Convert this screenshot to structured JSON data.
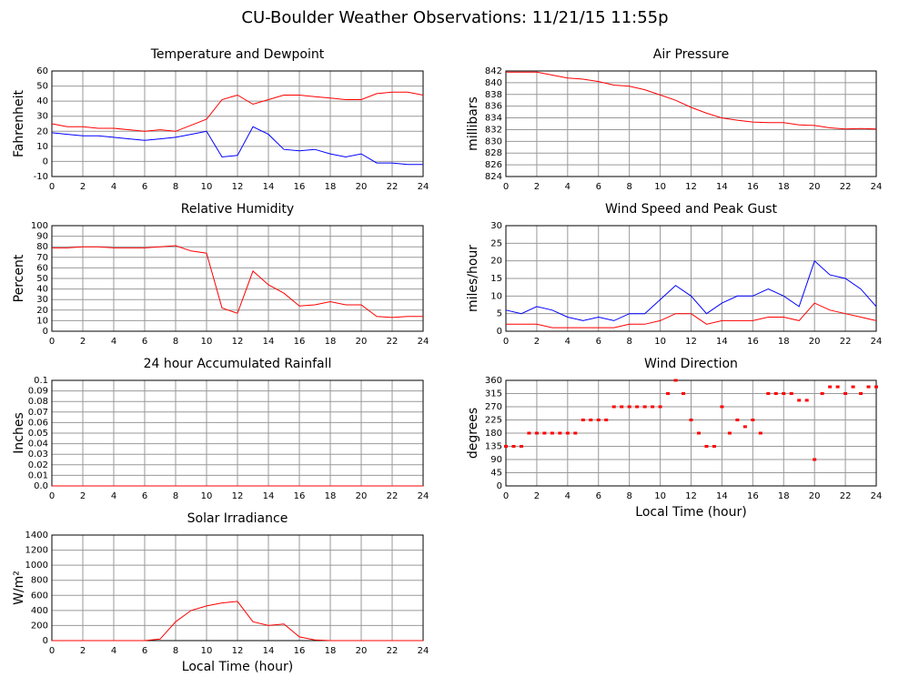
{
  "title": "CU-Boulder Weather Observations: 11/21/15 11:55p",
  "chart_data": [
    {
      "type": "line",
      "title": "Temperature and Dewpoint",
      "ylabel": "Fahrenheit",
      "x": [
        0,
        1,
        2,
        3,
        4,
        5,
        6,
        7,
        8,
        9,
        10,
        11,
        12,
        13,
        14,
        15,
        16,
        17,
        18,
        19,
        20,
        21,
        22,
        23,
        24
      ],
      "series": [
        {
          "name": "Temperature",
          "color": "#ff0000",
          "values": [
            25,
            23,
            23,
            22,
            22,
            21,
            20,
            21,
            20,
            24,
            28,
            41,
            44,
            38,
            41,
            44,
            44,
            43,
            42,
            41,
            41,
            45,
            46,
            46,
            44
          ]
        },
        {
          "name": "Dewpoint",
          "color": "#0000ff",
          "values": [
            19,
            18,
            17,
            17,
            16,
            15,
            14,
            15,
            16,
            18,
            20,
            3,
            4,
            23,
            18,
            8,
            7,
            8,
            5,
            3,
            5,
            -1,
            -1,
            -2,
            -2
          ]
        }
      ],
      "xlim": [
        0,
        24
      ],
      "xticks": [
        0,
        2,
        4,
        6,
        8,
        10,
        12,
        14,
        16,
        18,
        20,
        22,
        24
      ],
      "ylim": [
        -10,
        60
      ],
      "yticks": [
        -10,
        0,
        10,
        20,
        30,
        40,
        50,
        60
      ],
      "grid": true
    },
    {
      "type": "line",
      "title": "Air Pressure",
      "ylabel": "millibars",
      "x": [
        0,
        1,
        2,
        3,
        4,
        5,
        6,
        7,
        8,
        9,
        10,
        11,
        12,
        13,
        14,
        15,
        16,
        17,
        18,
        19,
        20,
        21,
        22,
        23,
        24
      ],
      "series": [
        {
          "name": "Air Pressure",
          "color": "#ff0000",
          "values": [
            841.8,
            841.8,
            841.8,
            841.3,
            840.8,
            840.6,
            840.2,
            839.6,
            839.4,
            838.8,
            837.9,
            837.0,
            835.8,
            834.8,
            834.0,
            833.6,
            833.3,
            833.2,
            833.2,
            832.8,
            832.7,
            832.3,
            832.1,
            832.2,
            832.1
          ]
        }
      ],
      "xlim": [
        0,
        24
      ],
      "xticks": [
        0,
        2,
        4,
        6,
        8,
        10,
        12,
        14,
        16,
        18,
        20,
        22,
        24
      ],
      "ylim": [
        824,
        842
      ],
      "yticks": [
        824,
        826,
        828,
        830,
        832,
        834,
        836,
        838,
        840,
        842
      ],
      "grid": true
    },
    {
      "type": "line",
      "title": "Relative Humidity",
      "ylabel": "Percent",
      "x": [
        0,
        1,
        2,
        3,
        4,
        5,
        6,
        7,
        8,
        9,
        10,
        11,
        12,
        13,
        14,
        15,
        16,
        17,
        18,
        19,
        20,
        21,
        22,
        23,
        24
      ],
      "series": [
        {
          "name": "Relative Humidity",
          "color": "#ff0000",
          "values": [
            79,
            79,
            80,
            80,
            79,
            79,
            79,
            80,
            81,
            76,
            74,
            22,
            17,
            57,
            44,
            36,
            24,
            25,
            28,
            25,
            25,
            14,
            13,
            14,
            14
          ]
        }
      ],
      "xlim": [
        0,
        24
      ],
      "xticks": [
        0,
        2,
        4,
        6,
        8,
        10,
        12,
        14,
        16,
        18,
        20,
        22,
        24
      ],
      "ylim": [
        0,
        100
      ],
      "yticks": [
        0,
        10,
        20,
        30,
        40,
        50,
        60,
        70,
        80,
        90,
        100
      ],
      "grid": true
    },
    {
      "type": "line",
      "title": "Wind Speed and Peak Gust",
      "ylabel": "miles/hour",
      "x": [
        0,
        1,
        2,
        3,
        4,
        5,
        6,
        7,
        8,
        9,
        10,
        11,
        12,
        13,
        14,
        15,
        16,
        17,
        18,
        19,
        20,
        21,
        22,
        23,
        24
      ],
      "series": [
        {
          "name": "Peak Gust",
          "color": "#0000ff",
          "values": [
            6,
            5,
            7,
            6,
            4,
            3,
            4,
            3,
            5,
            5,
            9,
            13,
            10,
            5,
            8,
            10,
            10,
            12,
            10,
            7,
            20,
            16,
            15,
            12,
            7
          ]
        },
        {
          "name": "Wind Speed",
          "color": "#ff0000",
          "values": [
            2,
            2,
            2,
            1,
            1,
            1,
            1,
            1,
            2,
            2,
            3,
            5,
            5,
            2,
            3,
            3,
            3,
            4,
            4,
            3,
            8,
            6,
            5,
            4,
            3
          ]
        }
      ],
      "xlim": [
        0,
        24
      ],
      "xticks": [
        0,
        2,
        4,
        6,
        8,
        10,
        12,
        14,
        16,
        18,
        20,
        22,
        24
      ],
      "ylim": [
        0,
        30
      ],
      "yticks": [
        0,
        5,
        10,
        15,
        20,
        25,
        30
      ],
      "grid": true
    },
    {
      "type": "line",
      "title": "24 hour Accumulated Rainfall",
      "ylabel": "Inches",
      "x": [
        0,
        1,
        2,
        3,
        4,
        5,
        6,
        7,
        8,
        9,
        10,
        11,
        12,
        13,
        14,
        15,
        16,
        17,
        18,
        19,
        20,
        21,
        22,
        23,
        24
      ],
      "series": [
        {
          "name": "Rainfall",
          "color": "#ff0000",
          "values": [
            0,
            0,
            0,
            0,
            0,
            0,
            0,
            0,
            0,
            0,
            0,
            0,
            0,
            0,
            0,
            0,
            0,
            0,
            0,
            0,
            0,
            0,
            0,
            0,
            0
          ]
        }
      ],
      "xlim": [
        0,
        24
      ],
      "xticks": [
        0,
        2,
        4,
        6,
        8,
        10,
        12,
        14,
        16,
        18,
        20,
        22,
        24
      ],
      "ylim": [
        0,
        0.1
      ],
      "yticks": [
        {
          "value": 0,
          "label": "0.0"
        },
        0.01,
        0.02,
        0.03,
        0.04,
        0.05,
        0.06,
        0.07,
        0.08,
        0.09,
        0.1
      ],
      "grid": true
    },
    {
      "type": "scatter",
      "title": "Wind Direction",
      "ylabel": "degrees",
      "xlabel": "Local Time (hour)",
      "x": [
        0,
        0.5,
        1,
        1.5,
        2,
        2.5,
        3,
        3.5,
        4,
        4.5,
        5,
        5.5,
        6,
        6.5,
        7,
        7.5,
        8,
        8.5,
        9,
        9.5,
        10,
        10.5,
        11,
        11.5,
        12,
        12.5,
        13,
        13.5,
        14,
        14.5,
        15,
        15.5,
        16,
        16.5,
        17,
        17.5,
        18,
        18.5,
        19,
        19.5,
        20,
        20.5,
        21,
        21.5,
        22,
        22.5,
        23,
        23.5,
        24
      ],
      "series": [
        {
          "name": "Wind Direction",
          "color": "#ff0000",
          "values": [
            135,
            135,
            135,
            180,
            180,
            180,
            180,
            180,
            180,
            180,
            225,
            225,
            225,
            225,
            270,
            270,
            270,
            270,
            270,
            270,
            270,
            315,
            360,
            315,
            225,
            180,
            135,
            135,
            270,
            180,
            225,
            202,
            225,
            180,
            315,
            315,
            315,
            315,
            292,
            292,
            90,
            315,
            338,
            338,
            315,
            338,
            315,
            338,
            338
          ]
        }
      ],
      "xlim": [
        0,
        24
      ],
      "xticks": [
        0,
        2,
        4,
        6,
        8,
        10,
        12,
        14,
        16,
        18,
        20,
        22,
        24
      ],
      "ylim": [
        0,
        360
      ],
      "yticks": [
        0,
        45,
        90,
        135,
        180,
        225,
        270,
        315,
        360
      ],
      "grid": true
    },
    {
      "type": "line",
      "title": "Solar Irradiance",
      "ylabel": "W/m²",
      "xlabel": "Local Time (hour)",
      "x": [
        0,
        1,
        2,
        3,
        4,
        5,
        6,
        7,
        8,
        9,
        10,
        11,
        12,
        13,
        14,
        15,
        16,
        17,
        18,
        19,
        20,
        21,
        22,
        23,
        24
      ],
      "series": [
        {
          "name": "Solar Irradiance",
          "color": "#ff0000",
          "values": [
            0,
            0,
            0,
            0,
            0,
            0,
            0,
            20,
            250,
            400,
            460,
            500,
            520,
            250,
            200,
            220,
            50,
            10,
            0,
            0,
            0,
            0,
            0,
            0,
            0
          ]
        }
      ],
      "xlim": [
        0,
        24
      ],
      "xticks": [
        0,
        2,
        4,
        6,
        8,
        10,
        12,
        14,
        16,
        18,
        20,
        22,
        24
      ],
      "ylim": [
        0,
        1400
      ],
      "yticks": [
        0,
        200,
        400,
        600,
        800,
        1000,
        1200,
        1400
      ],
      "grid": true
    }
  ]
}
